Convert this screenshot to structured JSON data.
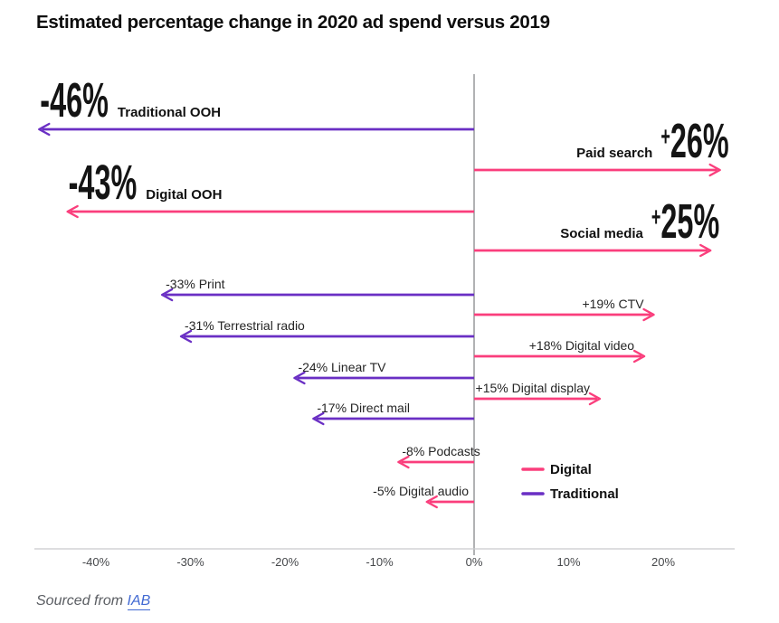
{
  "title": "Estimated percentage change in 2020 ad spend versus 2019",
  "colors": {
    "digital": "#fa3e7c",
    "traditional": "#6a2fc4",
    "title_text": "#0d0d0d",
    "big_number_text": "#141414",
    "label_text": "#252525",
    "tick_text": "#46484b",
    "axis_line": "#c9cbcd",
    "zero_line": "#97999b",
    "footer_text": "#5b5e63",
    "link": "#4169d2"
  },
  "legend": {
    "items": [
      {
        "label": "Digital",
        "key": "digital"
      },
      {
        "label": "Traditional",
        "key": "traditional"
      }
    ]
  },
  "footer": {
    "prefix": "Sourced from",
    "link_label": "IAB"
  },
  "chart_data": {
    "type": "bar",
    "subtype": "diverging-horizontal-arrows",
    "title": "Estimated percentage change in 2020 ad spend versus 2019",
    "xlabel": "",
    "ylabel": "",
    "unit": "%",
    "xlim": [
      -47,
      28
    ],
    "grid": false,
    "zero_line": true,
    "legend_position": "inside-bottom-right",
    "x_tick_labels": [
      "-40%",
      "-30%",
      "-20%",
      "-10%",
      "0%",
      "10%",
      "20%"
    ],
    "x_tick_values": [
      -40,
      -30,
      -20,
      -10,
      0,
      10,
      20
    ],
    "rows": [
      {
        "name": "Traditional OOH",
        "value": -46,
        "value_label": "-46%",
        "category": "traditional",
        "emphasis": "large"
      },
      {
        "name": "Paid search",
        "value": 26,
        "value_label": "+26%",
        "category": "digital",
        "emphasis": "large"
      },
      {
        "name": "Digital OOH",
        "value": -43,
        "value_label": "-43%",
        "category": "digital",
        "emphasis": "large"
      },
      {
        "name": "Social media",
        "value": 25,
        "value_label": "+25%",
        "category": "digital",
        "emphasis": "large"
      },
      {
        "name": "Print",
        "value": -33,
        "value_label": "-33%",
        "category": "traditional",
        "emphasis": "small"
      },
      {
        "name": "CTV",
        "value": 19,
        "value_label": "+19%",
        "category": "digital",
        "emphasis": "small"
      },
      {
        "name": "Terrestrial radio",
        "value": -31,
        "value_label": "-31%",
        "category": "traditional",
        "emphasis": "small"
      },
      {
        "name": "Digital video",
        "value": 18,
        "value_label": "+18%",
        "category": "digital",
        "emphasis": "small"
      },
      {
        "name": "Linear TV",
        "value": -24,
        "value_label": "-24%",
        "category": "traditional",
        "emphasis": "small"
      },
      {
        "name": "Digital display",
        "value": 15,
        "value_label": "+15%",
        "category": "digital",
        "emphasis": "small"
      },
      {
        "name": "Direct mail",
        "value": -17,
        "value_label": "-17%",
        "category": "traditional",
        "emphasis": "small"
      },
      {
        "name": "Podcasts",
        "value": -8,
        "value_label": "-8%",
        "category": "digital",
        "emphasis": "small"
      },
      {
        "name": "Digital audio",
        "value": -5,
        "value_label": "-5%",
        "category": "digital",
        "emphasis": "small"
      }
    ],
    "arrow_drawn_pct_overrides": {
      "Linear TV": -19,
      "Digital display": 13.3
    }
  }
}
